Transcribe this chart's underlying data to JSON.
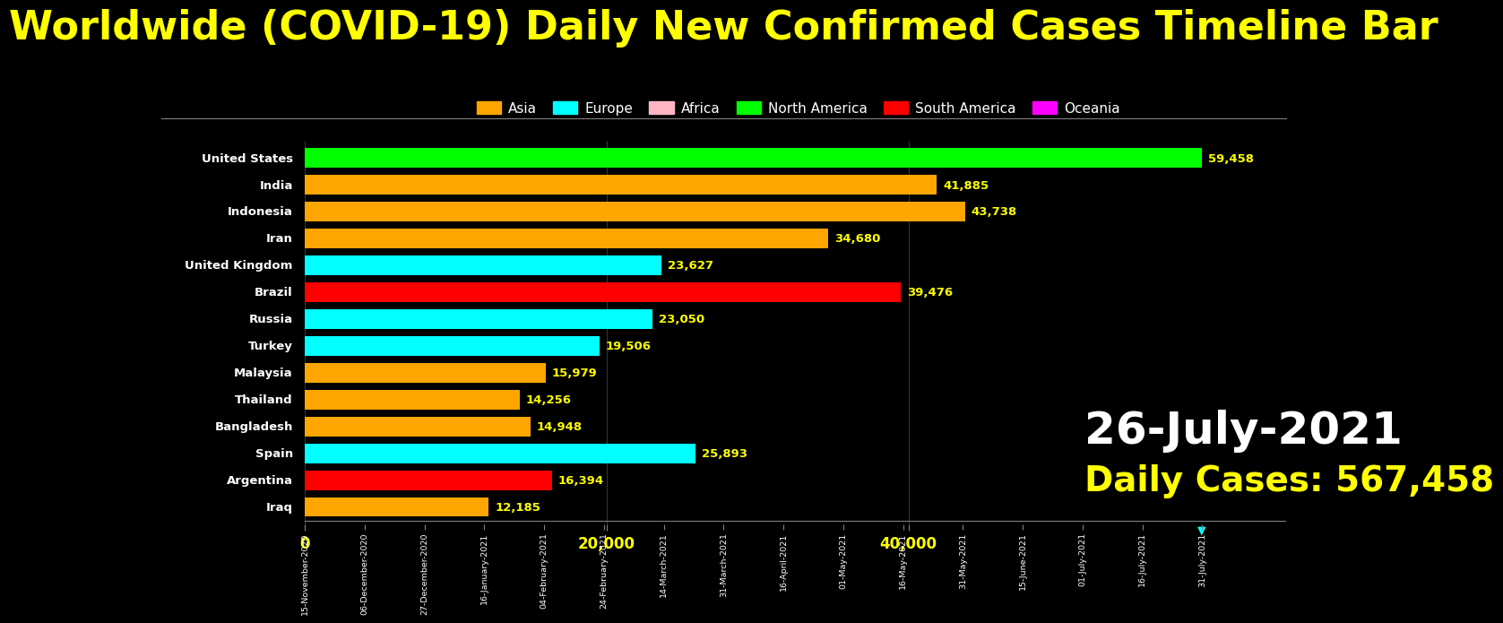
{
  "title": "Worldwide (COVID-19) Daily New Confirmed Cases Timeline Bar",
  "background_color": "#000000",
  "title_color": "#ffff00",
  "title_fontsize": 32,
  "legend_items": [
    {
      "label": "Asia",
      "color": "#FFA500"
    },
    {
      "label": "Europe",
      "color": "#00FFFF"
    },
    {
      "label": "Africa",
      "color": "#FFB6C1"
    },
    {
      "label": "North America",
      "color": "#00FF00"
    },
    {
      "label": "South America",
      "color": "#FF0000"
    },
    {
      "label": "Oceania",
      "color": "#FF00FF"
    }
  ],
  "countries": [
    {
      "name": "United States",
      "value": 59458,
      "color": "#00FF00",
      "continent": "North America"
    },
    {
      "name": "India",
      "value": 41885,
      "color": "#FFA500",
      "continent": "Asia"
    },
    {
      "name": "Indonesia",
      "value": 43738,
      "color": "#FFA500",
      "continent": "Asia"
    },
    {
      "name": "Iran",
      "value": 34680,
      "color": "#FFA500",
      "continent": "Asia"
    },
    {
      "name": "United Kingdom",
      "value": 23627,
      "color": "#00FFFF",
      "continent": "Europe"
    },
    {
      "name": "Brazil",
      "value": 39476,
      "color": "#FF0000",
      "continent": "South America"
    },
    {
      "name": "Russia",
      "value": 23050,
      "color": "#00FFFF",
      "continent": "Europe"
    },
    {
      "name": "Turkey",
      "value": 19506,
      "color": "#00FFFF",
      "continent": "Europe"
    },
    {
      "name": "Malaysia",
      "value": 15979,
      "color": "#FFA500",
      "continent": "Asia"
    },
    {
      "name": "Thailand",
      "value": 14256,
      "color": "#FFA500",
      "continent": "Asia"
    },
    {
      "name": "Bangladesh",
      "value": 14948,
      "color": "#FFA500",
      "continent": "Asia"
    },
    {
      "name": "Spain",
      "value": 25893,
      "color": "#00FFFF",
      "continent": "Europe"
    },
    {
      "name": "Argentina",
      "value": 16394,
      "color": "#FF0000",
      "continent": "South America"
    },
    {
      "name": "Iraq",
      "value": 12185,
      "color": "#FFA500",
      "continent": "Asia"
    }
  ],
  "xlim": [
    0,
    65000
  ],
  "xticks": [
    0,
    20000,
    40000
  ],
  "xtick_labels": [
    "0",
    "20,000",
    "40,000"
  ],
  "xlabel_color": "#ffff00",
  "value_label_color": "#ffff00",
  "bar_height": 0.72,
  "date_text": "26-July-2021",
  "daily_cases_text": "Daily Cases: 567,458",
  "date_color": "#ffffff",
  "daily_cases_color": "#ffff00",
  "date_fontsize": 36,
  "daily_cases_fontsize": 28,
  "xaxis_dates": [
    "15-November-2020",
    "06-December-2020",
    "27-December-2020",
    "16-January-2021",
    "04-February-2021",
    "24-February-2021",
    "14-March-2021",
    "31-March-2021",
    "16-April-2021",
    "01-May-2021",
    "16-May-2021",
    "31-May-2021",
    "15-June-2021",
    "01-July-2021",
    "16-July-2021",
    "31-July-2021"
  ]
}
